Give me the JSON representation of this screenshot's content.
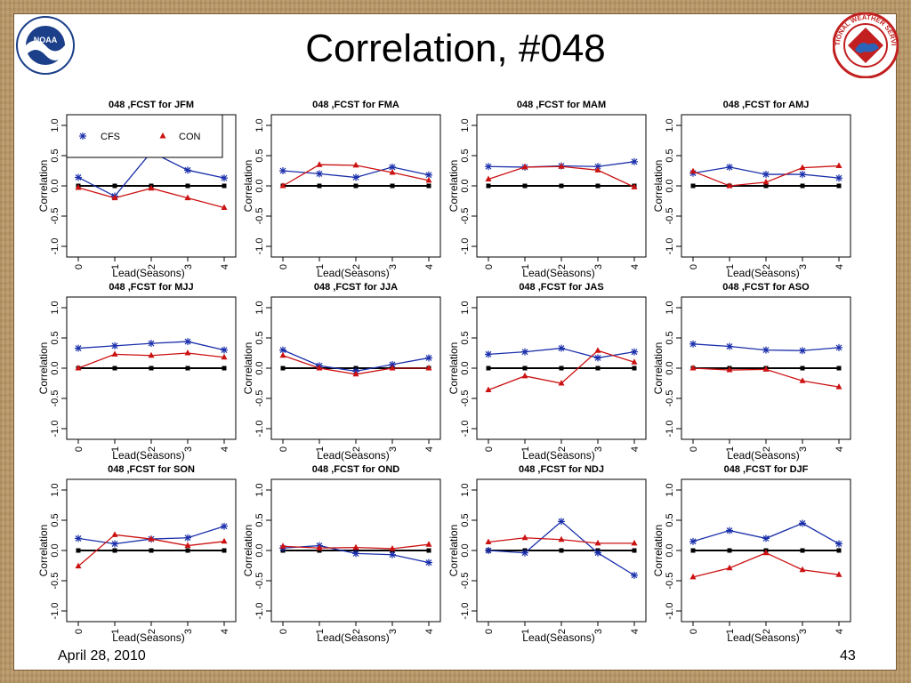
{
  "slide": {
    "title": "Correlation, #048",
    "footer_date": "April 28, 2010",
    "page_number": "43",
    "logo_left_text": "NOAA",
    "logo_right_text": "NATIONAL WEATHER SERVICE"
  },
  "legend": {
    "cfs": "CFS",
    "con": "CON"
  },
  "colors": {
    "cfs": "#1a2faa",
    "con": "#cc1111",
    "zero": "#000000"
  },
  "chart_data": [
    {
      "type": "line",
      "title": "048 ,FCST for JFM",
      "xlabel": "Lead(Seasons)",
      "ylabel": "Correlation",
      "x": [
        0,
        1,
        2,
        3,
        4
      ],
      "xticks": [
        "0",
        "1",
        "2",
        "3",
        "4"
      ],
      "yticks": [
        "-1.0",
        "-0.5",
        "0.0",
        "0.5",
        "1.0"
      ],
      "ylim": [
        -1,
        1
      ],
      "legend": "top-left",
      "series": [
        {
          "name": "CFS",
          "values": [
            0.14,
            -0.17,
            0.56,
            0.26,
            0.13
          ]
        },
        {
          "name": "CON",
          "values": [
            -0.03,
            -0.2,
            -0.04,
            -0.2,
            -0.36
          ]
        }
      ]
    },
    {
      "type": "line",
      "title": "048 ,FCST for FMA",
      "xlabel": "Lead(Seasons)",
      "ylabel": "Correlation",
      "x": [
        0,
        1,
        2,
        3,
        4
      ],
      "xticks": [
        "0",
        "1",
        "2",
        "3",
        "4"
      ],
      "yticks": [
        "-1.0",
        "-0.5",
        "0.0",
        "0.5",
        "1.0"
      ],
      "ylim": [
        -1,
        1
      ],
      "series": [
        {
          "name": "CFS",
          "values": [
            0.25,
            0.2,
            0.14,
            0.31,
            0.18
          ]
        },
        {
          "name": "CON",
          "values": [
            0.0,
            0.35,
            0.34,
            0.22,
            0.09
          ]
        }
      ]
    },
    {
      "type": "line",
      "title": "048 ,FCST for MAM",
      "xlabel": "Lead(Seasons)",
      "ylabel": "Correlation",
      "x": [
        0,
        1,
        2,
        3,
        4
      ],
      "xticks": [
        "0",
        "1",
        "2",
        "3",
        "4"
      ],
      "yticks": [
        "-1.0",
        "-0.5",
        "0.0",
        "0.5",
        "1.0"
      ],
      "ylim": [
        -1,
        1
      ],
      "series": [
        {
          "name": "CFS",
          "values": [
            0.32,
            0.31,
            0.33,
            0.32,
            0.4
          ]
        },
        {
          "name": "CON",
          "values": [
            0.11,
            0.31,
            0.32,
            0.26,
            -0.02
          ]
        }
      ]
    },
    {
      "type": "line",
      "title": "048 ,FCST for AMJ",
      "xlabel": "Lead(Seasons)",
      "ylabel": "Correlation",
      "x": [
        0,
        1,
        2,
        3,
        4
      ],
      "xticks": [
        "0",
        "1",
        "2",
        "3",
        "4"
      ],
      "yticks": [
        "-1.0",
        "-0.5",
        "0.0",
        "0.5",
        "1.0"
      ],
      "ylim": [
        -1,
        1
      ],
      "series": [
        {
          "name": "CFS",
          "values": [
            0.21,
            0.31,
            0.19,
            0.19,
            0.13
          ]
        },
        {
          "name": "CON",
          "values": [
            0.24,
            0.0,
            0.06,
            0.3,
            0.33
          ]
        }
      ]
    },
    {
      "type": "line",
      "title": "048 ,FCST for MJJ",
      "xlabel": "Lead(Seasons)",
      "ylabel": "Correlation",
      "x": [
        0,
        1,
        2,
        3,
        4
      ],
      "xticks": [
        "0",
        "1",
        "2",
        "3",
        "4"
      ],
      "yticks": [
        "-1.0",
        "-0.5",
        "0.0",
        "0.5",
        "1.0"
      ],
      "ylim": [
        -1,
        1
      ],
      "series": [
        {
          "name": "CFS",
          "values": [
            0.33,
            0.37,
            0.41,
            0.44,
            0.3
          ]
        },
        {
          "name": "CON",
          "values": [
            0.0,
            0.23,
            0.21,
            0.25,
            0.18
          ]
        }
      ]
    },
    {
      "type": "line",
      "title": "048 ,FCST for JJA",
      "xlabel": "Lead(Seasons)",
      "ylabel": "Correlation",
      "x": [
        0,
        1,
        2,
        3,
        4
      ],
      "xticks": [
        "0",
        "1",
        "2",
        "3",
        "4"
      ],
      "yticks": [
        "-1.0",
        "-0.5",
        "0.0",
        "0.5",
        "1.0"
      ],
      "ylim": [
        -1,
        1
      ],
      "series": [
        {
          "name": "CFS",
          "values": [
            0.3,
            0.04,
            -0.05,
            0.06,
            0.17
          ]
        },
        {
          "name": "CON",
          "values": [
            0.21,
            0.0,
            -0.1,
            0.0,
            0.0
          ]
        }
      ]
    },
    {
      "type": "line",
      "title": "048 ,FCST for JAS",
      "xlabel": "Lead(Seasons)",
      "ylabel": "Correlation",
      "x": [
        0,
        1,
        2,
        3,
        4
      ],
      "xticks": [
        "0",
        "1",
        "2",
        "3",
        "4"
      ],
      "yticks": [
        "-1.0",
        "-0.5",
        "0.0",
        "0.5",
        "1.0"
      ],
      "ylim": [
        -1,
        1
      ],
      "series": [
        {
          "name": "CFS",
          "values": [
            0.23,
            0.27,
            0.33,
            0.17,
            0.27
          ]
        },
        {
          "name": "CON",
          "values": [
            -0.36,
            -0.13,
            -0.25,
            0.29,
            0.1
          ]
        }
      ]
    },
    {
      "type": "line",
      "title": "048 ,FCST for ASO",
      "xlabel": "Lead(Seasons)",
      "ylabel": "Correlation",
      "x": [
        0,
        1,
        2,
        3,
        4
      ],
      "xticks": [
        "0",
        "1",
        "2",
        "3",
        "4"
      ],
      "yticks": [
        "-1.0",
        "-0.5",
        "0.0",
        "0.5",
        "1.0"
      ],
      "ylim": [
        -1,
        1
      ],
      "series": [
        {
          "name": "CFS",
          "values": [
            0.4,
            0.36,
            0.3,
            0.29,
            0.34
          ]
        },
        {
          "name": "CON",
          "values": [
            0.0,
            -0.03,
            -0.02,
            -0.21,
            -0.31
          ]
        }
      ]
    },
    {
      "type": "line",
      "title": "048 ,FCST for SON",
      "xlabel": "Lead(Seasons)",
      "ylabel": "Correlation",
      "x": [
        0,
        1,
        2,
        3,
        4
      ],
      "xticks": [
        "0",
        "1",
        "2",
        "3",
        "4"
      ],
      "yticks": [
        "-1.0",
        "-0.5",
        "0.0",
        "0.5",
        "1.0"
      ],
      "ylim": [
        -1,
        1
      ],
      "series": [
        {
          "name": "CFS",
          "values": [
            0.2,
            0.11,
            0.19,
            0.21,
            0.4
          ]
        },
        {
          "name": "CON",
          "values": [
            -0.26,
            0.26,
            0.19,
            0.08,
            0.15
          ]
        }
      ]
    },
    {
      "type": "line",
      "title": "048 ,FCST for OND",
      "xlabel": "Lead(Seasons)",
      "ylabel": "Correlation",
      "x": [
        0,
        1,
        2,
        3,
        4
      ],
      "xticks": [
        "0",
        "1",
        "2",
        "3",
        "4"
      ],
      "yticks": [
        "-1.0",
        "-0.5",
        "0.0",
        "0.5",
        "1.0"
      ],
      "ylim": [
        -1,
        1
      ],
      "series": [
        {
          "name": "CFS",
          "values": [
            0.04,
            0.08,
            -0.05,
            -0.07,
            -0.2
          ]
        },
        {
          "name": "CON",
          "values": [
            0.07,
            0.04,
            0.05,
            0.03,
            0.1
          ]
        }
      ]
    },
    {
      "type": "line",
      "title": "048 ,FCST for NDJ",
      "xlabel": "Lead(Seasons)",
      "ylabel": "Correlation",
      "x": [
        0,
        1,
        2,
        3,
        4
      ],
      "xticks": [
        "0",
        "1",
        "2",
        "3",
        "4"
      ],
      "yticks": [
        "-1.0",
        "-0.5",
        "0.0",
        "0.5",
        "1.0"
      ],
      "ylim": [
        -1,
        1
      ],
      "series": [
        {
          "name": "CFS",
          "values": [
            0.0,
            -0.04,
            0.48,
            -0.04,
            -0.41
          ]
        },
        {
          "name": "CON",
          "values": [
            0.14,
            0.21,
            0.18,
            0.12,
            0.12
          ]
        }
      ]
    },
    {
      "type": "line",
      "title": "048 ,FCST for DJF",
      "xlabel": "Lead(Seasons)",
      "ylabel": "Correlation",
      "x": [
        0,
        1,
        2,
        3,
        4
      ],
      "xticks": [
        "0",
        "1",
        "2",
        "3",
        "4"
      ],
      "yticks": [
        "-1.0",
        "-0.5",
        "0.0",
        "0.5",
        "1.0"
      ],
      "ylim": [
        -1,
        1
      ],
      "series": [
        {
          "name": "CFS",
          "values": [
            0.15,
            0.33,
            0.2,
            0.45,
            0.11
          ]
        },
        {
          "name": "CON",
          "values": [
            -0.44,
            -0.29,
            -0.04,
            -0.32,
            -0.4
          ]
        }
      ]
    }
  ]
}
